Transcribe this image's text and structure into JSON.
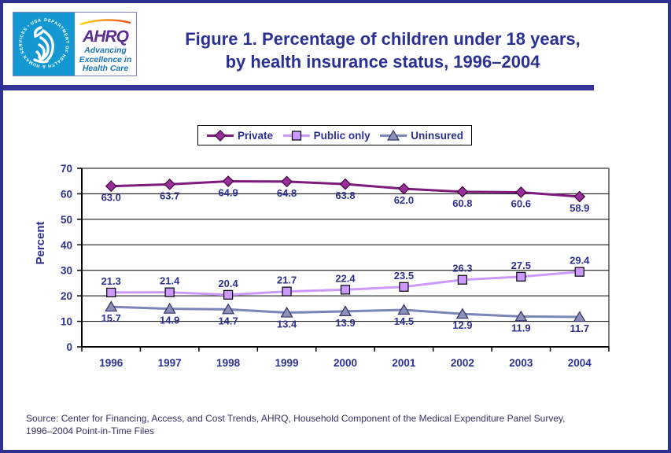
{
  "header": {
    "title_line1": "Figure 1. Percentage of children under 18 years,",
    "title_line2": "by health insurance status, 1996–2004",
    "logo": {
      "seal_text": "DEPARTMENT OF HEALTH & HUMAN SERVICES • USA",
      "ahrq_acronym": "AHRQ",
      "tagline_line1": "Advancing",
      "tagline_line2": "Excellence in",
      "tagline_line3": "Health Care"
    }
  },
  "colors": {
    "page_border": "#2E3192",
    "divider_bar": "#333399",
    "navy_text": "#2B3192",
    "axis_text": "#2E3192",
    "source_text": "#333366",
    "hhs_blue": "#1498D2",
    "ahrq_purple": "#5C2D91",
    "tagline_blue": "#1B75BC"
  },
  "chart_data": {
    "type": "line",
    "title": "Figure 1. Percentage of children under 18 years, by health insurance status, 1996–2004",
    "categories": [
      "1996",
      "1997",
      "1998",
      "1999",
      "2000",
      "2001",
      "2002",
      "2003",
      "2004"
    ],
    "series": [
      {
        "name": "Private",
        "values": [
          63.0,
          63.7,
          64.9,
          64.8,
          63.8,
          62.0,
          60.8,
          60.6,
          58.9
        ],
        "color": "#7D1A7D",
        "marker": "diamond",
        "marker_fill": "#9A2E9A",
        "marker_stroke": "#3D003D",
        "label_position": "below"
      },
      {
        "name": "Public only",
        "values": [
          21.3,
          21.4,
          20.4,
          21.7,
          22.4,
          23.5,
          26.3,
          27.5,
          29.4
        ],
        "color": "#CC99FF",
        "marker": "square",
        "marker_fill": "#CC99FF",
        "marker_stroke": "#000000",
        "label_position": "above"
      },
      {
        "name": "Uninsured",
        "values": [
          15.7,
          14.9,
          14.7,
          13.4,
          13.9,
          14.5,
          12.9,
          11.9,
          11.7
        ],
        "color": "#7A85B8",
        "marker": "triangle",
        "marker_fill": "#8A90B8",
        "marker_stroke": "#333366",
        "label_position": "below"
      }
    ],
    "xlabel": "",
    "ylabel": "Percent",
    "ylim": [
      0,
      70
    ],
    "ytick_interval": 10,
    "yticks": [
      0,
      10,
      20,
      30,
      40,
      50,
      60,
      70
    ],
    "grid": true,
    "legend_position": "top"
  },
  "source": {
    "line1": "Source: Center for Financing, Access, and Cost Trends, AHRQ, Household Component of the Medical Expenditure Panel Survey,",
    "line2": "1996–2004 Point-in-Time Files"
  }
}
